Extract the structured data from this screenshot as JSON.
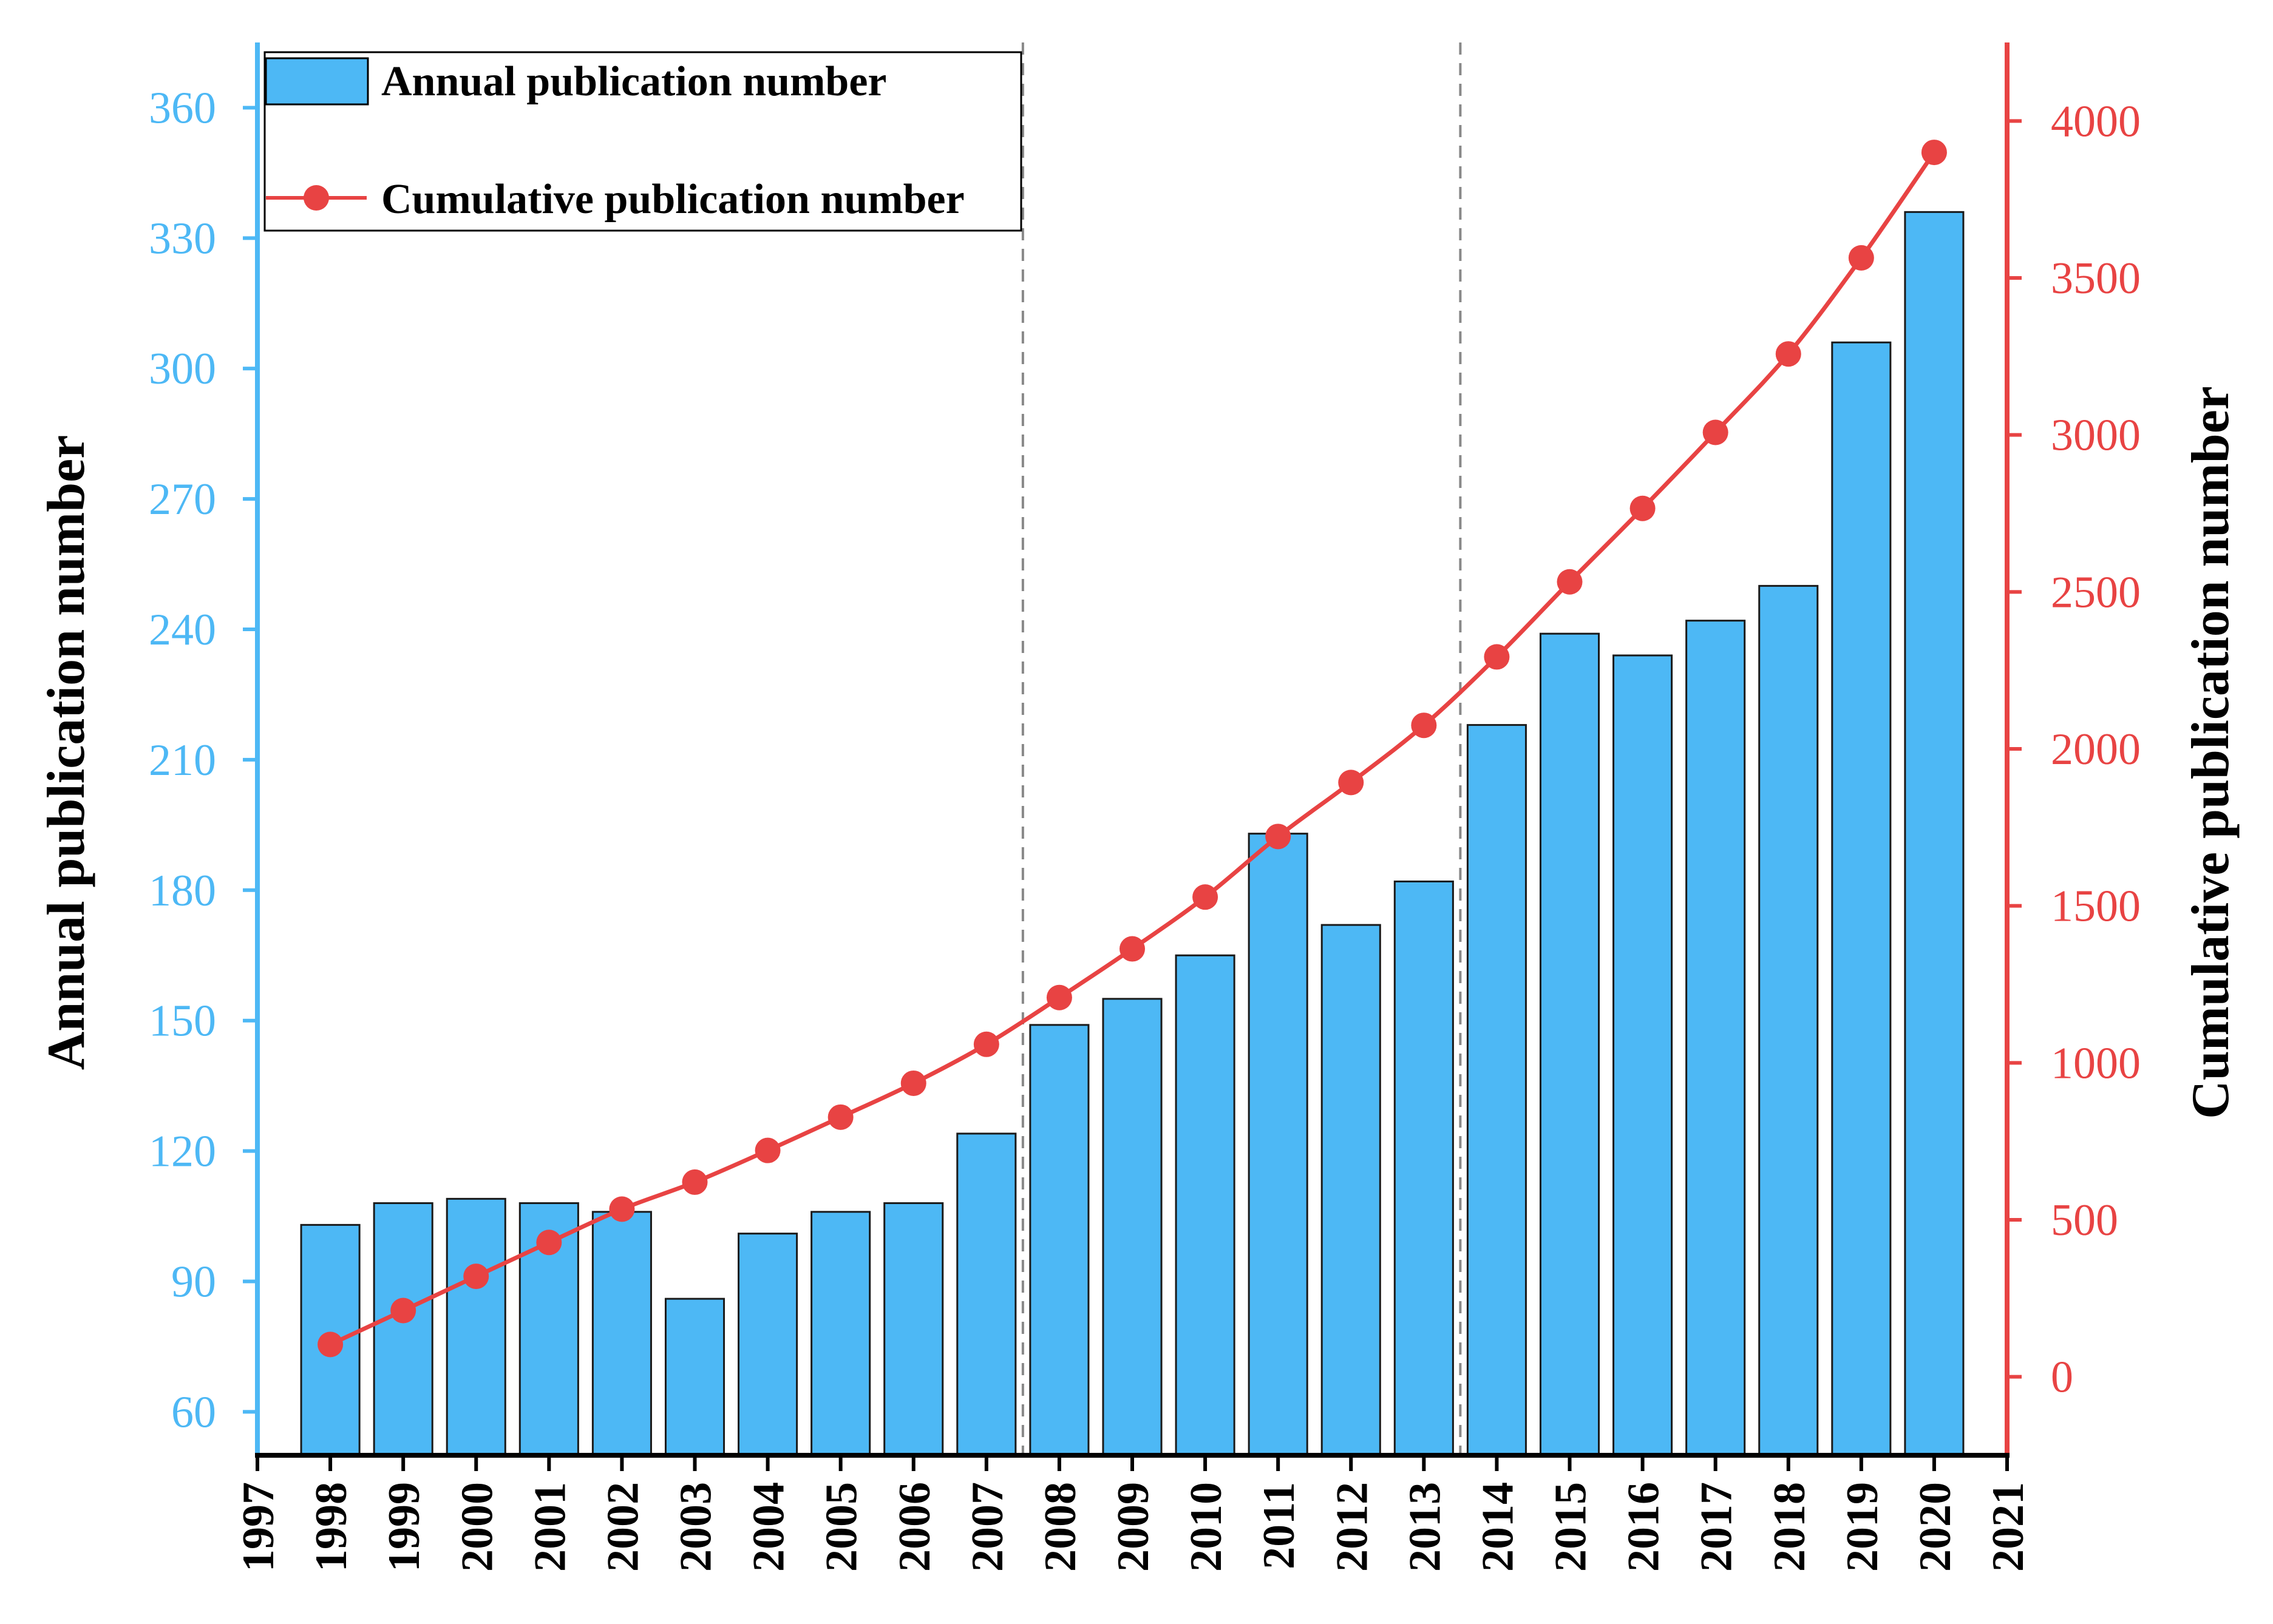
{
  "chart_data": {
    "type": "bar+line",
    "x": [
      1998,
      1999,
      2000,
      2001,
      2002,
      2003,
      2004,
      2005,
      2006,
      2007,
      2008,
      2009,
      2010,
      2011,
      2012,
      2013,
      2014,
      2015,
      2016,
      2017,
      2018,
      2019,
      2020
    ],
    "series": [
      {
        "name": "Annual publication number",
        "type": "bar",
        "axis": "left",
        "color": "#4db8f5",
        "values": [
          103,
          108,
          109,
          108,
          106,
          86,
          101,
          106,
          108,
          124,
          149,
          155,
          165,
          193,
          172,
          182,
          218,
          239,
          234,
          242,
          250,
          306,
          336
        ]
      },
      {
        "name": "Cumulative publication number",
        "type": "line",
        "axis": "right",
        "color": "#e84343",
        "values": [
          103,
          211,
          320,
          428,
          534,
          620,
          721,
          827,
          935,
          1059,
          1208,
          1363,
          1528,
          1721,
          1893,
          2075,
          2293,
          2532,
          2766,
          3008,
          3258,
          3564,
          3900
        ]
      }
    ],
    "x_ticks": [
      "1997",
      "1998",
      "1999",
      "2000",
      "2001",
      "2002",
      "2003",
      "2004",
      "2005",
      "2006",
      "2007",
      "2008",
      "2009",
      "2010",
      "2011",
      "2012",
      "2013",
      "2014",
      "2015",
      "2016",
      "2017",
      "2018",
      "2019",
      "2020",
      "2021"
    ],
    "xlim": [
      1997,
      2021
    ],
    "y_left": {
      "label": "Annual publication number",
      "ticks": [
        "60",
        "90",
        "120",
        "150",
        "180",
        "210",
        "240",
        "270",
        "300",
        "330",
        "360"
      ],
      "ylim": [
        50,
        375
      ],
      "color": "#4db8f5"
    },
    "y_right": {
      "label": "Cumulative publication number",
      "ticks": [
        "0",
        "500",
        "1000",
        "1500",
        "2000",
        "2500",
        "3000",
        "3500",
        "4000"
      ],
      "ylim": [
        -250,
        4250
      ],
      "color": "#e84343"
    },
    "vlines": [
      2007.5,
      2013.5
    ],
    "legend": {
      "position": "top-left",
      "entries": [
        "Annual publication number",
        "Cumulative publication number"
      ]
    }
  }
}
